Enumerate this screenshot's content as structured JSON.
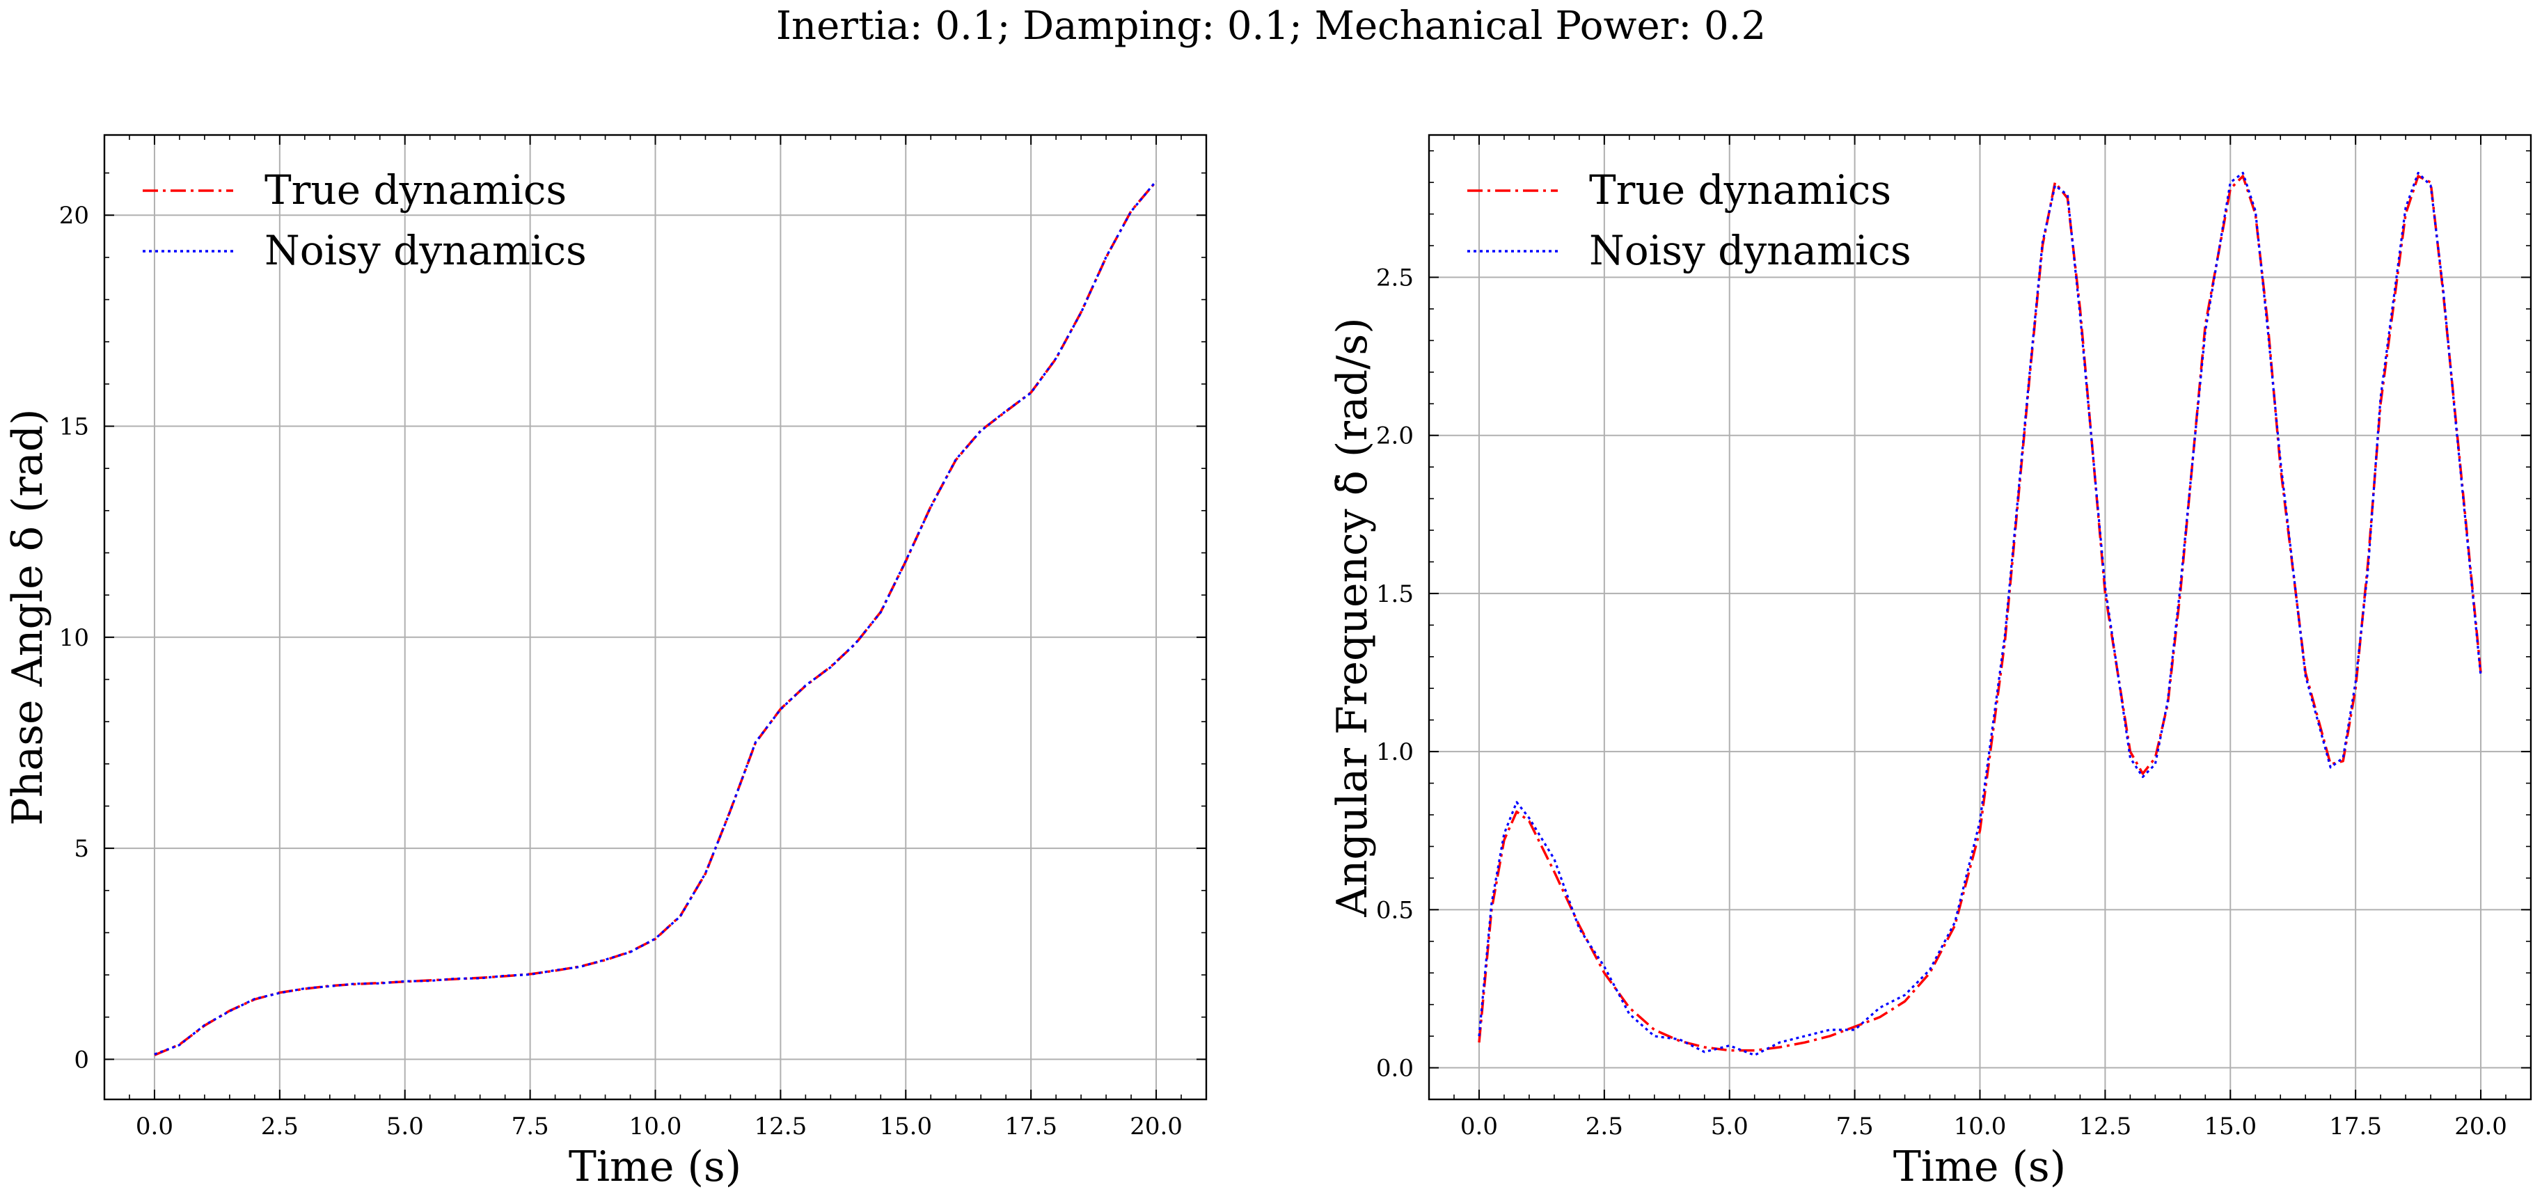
{
  "suptitle": "Inertia: 0.1; Damping: 0.1; Mechanical Power: 0.2",
  "colors": {
    "true": "#ff0000",
    "noisy": "#0000ff",
    "grid": "#b0b0b0"
  },
  "chart_data": [
    {
      "type": "line",
      "xlabel": "Time (s)",
      "ylabel": "Phase Angle δ (rad)",
      "xlim": [
        -1.0,
        21.0
      ],
      "ylim": [
        -0.95,
        21.9
      ],
      "xticks": [
        0,
        2.5,
        5,
        7.5,
        10,
        12.5,
        15,
        17.5,
        20
      ],
      "xtick_labels": [
        "0.0",
        "2.5",
        "5.0",
        "7.5",
        "10.0",
        "12.5",
        "15.0",
        "17.5",
        "20.0"
      ],
      "yticks": [
        0,
        5,
        10,
        15,
        20
      ],
      "ytick_labels": [
        "0",
        "5",
        "10",
        "15",
        "20"
      ],
      "grid": true,
      "legend": [
        "True dynamics",
        "Noisy dynamics"
      ],
      "legend_position": "top-left",
      "x": [
        0,
        0.5,
        1,
        1.5,
        2,
        2.5,
        3,
        3.5,
        4,
        4.5,
        5,
        5.5,
        6,
        6.5,
        7,
        7.5,
        8,
        8.5,
        9,
        9.5,
        10,
        10.5,
        11,
        11.5,
        12,
        12.5,
        13,
        13.5,
        14,
        14.5,
        15,
        15.5,
        16,
        16.5,
        17,
        17.5,
        18,
        18.5,
        19,
        19.5,
        20
      ],
      "series": [
        {
          "name": "True dynamics",
          "style": "dashdot",
          "values": [
            0.1,
            0.35,
            0.8,
            1.15,
            1.42,
            1.58,
            1.67,
            1.74,
            1.78,
            1.81,
            1.84,
            1.87,
            1.9,
            1.93,
            1.97,
            2.02,
            2.1,
            2.2,
            2.35,
            2.55,
            2.85,
            3.4,
            4.4,
            5.9,
            7.5,
            8.3,
            8.85,
            9.3,
            9.85,
            10.6,
            11.8,
            13.1,
            14.2,
            14.9,
            15.35,
            15.8,
            16.6,
            17.7,
            19.0,
            20.1,
            20.8
          ]
        },
        {
          "name": "Noisy dynamics",
          "style": "dotted",
          "values": [
            0.12,
            0.34,
            0.81,
            1.14,
            1.43,
            1.57,
            1.68,
            1.73,
            1.79,
            1.8,
            1.85,
            1.86,
            1.91,
            1.92,
            1.98,
            2.01,
            2.11,
            2.19,
            2.36,
            2.54,
            2.86,
            3.39,
            4.41,
            5.89,
            7.51,
            8.29,
            8.86,
            9.29,
            9.86,
            10.59,
            11.81,
            13.09,
            14.21,
            14.89,
            15.36,
            15.79,
            16.61,
            17.69,
            19.01,
            20.09,
            20.81
          ]
        }
      ]
    },
    {
      "type": "line",
      "xlabel": "Time (s)",
      "ylabel": "Angular Frequency δ̇ (rad/s)",
      "xlim": [
        -1.0,
        21.0
      ],
      "ylim": [
        -0.1,
        2.95
      ],
      "xticks": [
        0,
        2.5,
        5,
        7.5,
        10,
        12.5,
        15,
        17.5,
        20
      ],
      "xtick_labels": [
        "0.0",
        "2.5",
        "5.0",
        "7.5",
        "10.0",
        "12.5",
        "15.0",
        "17.5",
        "20.0"
      ],
      "yticks": [
        0,
        0.5,
        1,
        1.5,
        2,
        2.5
      ],
      "ytick_labels": [
        "0.0",
        "0.5",
        "1.0",
        "1.5",
        "2.0",
        "2.5"
      ],
      "grid": true,
      "legend": [
        "True dynamics",
        "Noisy dynamics"
      ],
      "legend_position": "top-left",
      "x": [
        0,
        0.25,
        0.5,
        0.75,
        1,
        1.5,
        2,
        2.5,
        3,
        3.5,
        4,
        4.5,
        5,
        5.5,
        6,
        6.5,
        7,
        7.5,
        8,
        8.5,
        9,
        9.5,
        10,
        10.5,
        11,
        11.25,
        11.5,
        11.75,
        12,
        12.5,
        13,
        13.25,
        13.5,
        13.75,
        14,
        14.5,
        15,
        15.25,
        15.5,
        15.75,
        16,
        16.5,
        17,
        17.25,
        17.5,
        17.75,
        18,
        18.5,
        18.75,
        19,
        19.25,
        19.5,
        20
      ],
      "series": [
        {
          "name": "True dynamics",
          "style": "dashdot",
          "values": [
            0.08,
            0.5,
            0.72,
            0.81,
            0.78,
            0.62,
            0.45,
            0.3,
            0.19,
            0.12,
            0.085,
            0.065,
            0.055,
            0.055,
            0.065,
            0.08,
            0.1,
            0.13,
            0.16,
            0.21,
            0.3,
            0.45,
            0.75,
            1.35,
            2.2,
            2.6,
            2.8,
            2.75,
            2.4,
            1.5,
            1.0,
            0.93,
            0.98,
            1.15,
            1.5,
            2.35,
            2.78,
            2.82,
            2.7,
            2.35,
            1.9,
            1.25,
            0.96,
            0.97,
            1.2,
            1.6,
            2.1,
            2.7,
            2.82,
            2.8,
            2.45,
            2.05,
            1.25
          ]
        },
        {
          "name": "Noisy dynamics",
          "style": "dotted",
          "values": [
            0.1,
            0.52,
            0.74,
            0.84,
            0.79,
            0.66,
            0.44,
            0.32,
            0.17,
            0.1,
            0.09,
            0.05,
            0.07,
            0.04,
            0.08,
            0.1,
            0.12,
            0.12,
            0.19,
            0.23,
            0.31,
            0.46,
            0.78,
            1.37,
            2.21,
            2.61,
            2.79,
            2.76,
            2.38,
            1.52,
            0.98,
            0.92,
            0.96,
            1.16,
            1.52,
            2.33,
            2.8,
            2.83,
            2.71,
            2.33,
            1.92,
            1.24,
            0.95,
            0.98,
            1.22,
            1.58,
            2.12,
            2.72,
            2.83,
            2.79,
            2.46,
            2.04,
            1.24
          ]
        }
      ]
    }
  ]
}
